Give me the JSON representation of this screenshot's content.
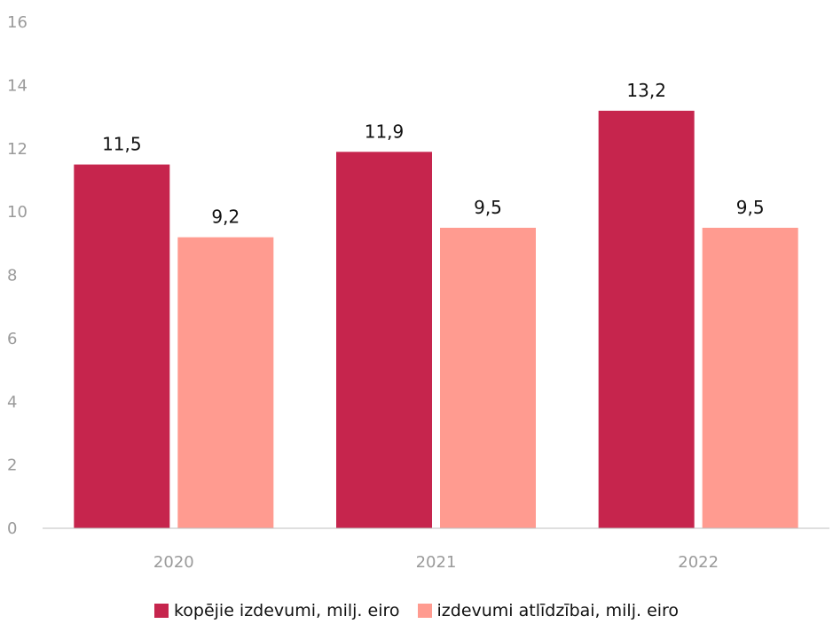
{
  "chart_data": {
    "type": "bar",
    "categories": [
      "2020",
      "2021",
      "2022"
    ],
    "series": [
      {
        "name": "kopējie izdevumi, milj. eiro",
        "color": "#C6254D",
        "values": [
          11.5,
          11.9,
          13.2
        ],
        "labels": [
          "11,5",
          "11,9",
          "13,2"
        ]
      },
      {
        "name": "izdevumi atlīdzībai, milj. eiro",
        "color": "#FF9B90",
        "values": [
          9.2,
          9.5,
          9.5
        ],
        "labels": [
          "9,2",
          "9,5",
          "9,5"
        ]
      }
    ],
    "ylim": [
      0,
      16
    ],
    "yticks": [
      0,
      2,
      4,
      6,
      8,
      10,
      12,
      14,
      16
    ],
    "grid": false,
    "legend_position": "bottom"
  }
}
